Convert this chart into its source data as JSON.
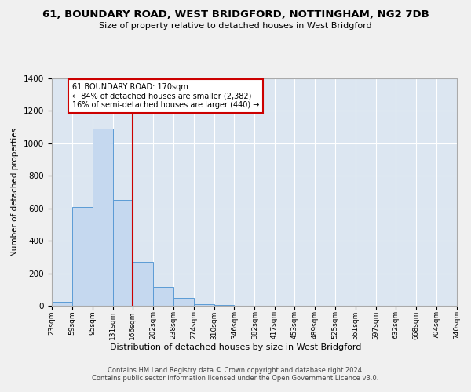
{
  "title": "61, BOUNDARY ROAD, WEST BRIDGFORD, NOTTINGHAM, NG2 7DB",
  "subtitle": "Size of property relative to detached houses in West Bridgford",
  "xlabel": "Distribution of detached houses by size in West Bridgford",
  "ylabel": "Number of detached properties",
  "bar_color": "#c5d8ef",
  "bar_edge_color": "#5b9bd5",
  "background_color": "#dce6f1",
  "grid_color": "#ffffff",
  "vline_x": 166,
  "vline_color": "#cc0000",
  "annotation_line1": "61 BOUNDARY ROAD: 170sqm",
  "annotation_line2": "← 84% of detached houses are smaller (2,382)",
  "annotation_line3": "16% of semi-detached houses are larger (440) →",
  "annotation_box_color": "#ffffff",
  "annotation_box_edge_color": "#cc0000",
  "bin_edges": [
    23,
    59,
    95,
    131,
    166,
    202,
    238,
    274,
    310,
    346,
    382,
    417,
    453,
    489,
    525,
    561,
    597,
    632,
    668,
    704,
    740
  ],
  "bin_heights": [
    25,
    610,
    1090,
    650,
    270,
    115,
    50,
    12,
    6,
    0,
    0,
    0,
    0,
    0,
    0,
    0,
    0,
    0,
    0,
    0
  ],
  "ylim": [
    0,
    1400
  ],
  "yticks": [
    0,
    200,
    400,
    600,
    800,
    1000,
    1200,
    1400
  ],
  "xtick_labels": [
    "23sqm",
    "59sqm",
    "95sqm",
    "131sqm",
    "166sqm",
    "202sqm",
    "238sqm",
    "274sqm",
    "310sqm",
    "346sqm",
    "382sqm",
    "417sqm",
    "453sqm",
    "489sqm",
    "525sqm",
    "561sqm",
    "597sqm",
    "632sqm",
    "668sqm",
    "704sqm",
    "740sqm"
  ],
  "footer1": "Contains HM Land Registry data © Crown copyright and database right 2024.",
  "footer2": "Contains public sector information licensed under the Open Government Licence v3.0.",
  "fig_bg": "#f0f0f0"
}
